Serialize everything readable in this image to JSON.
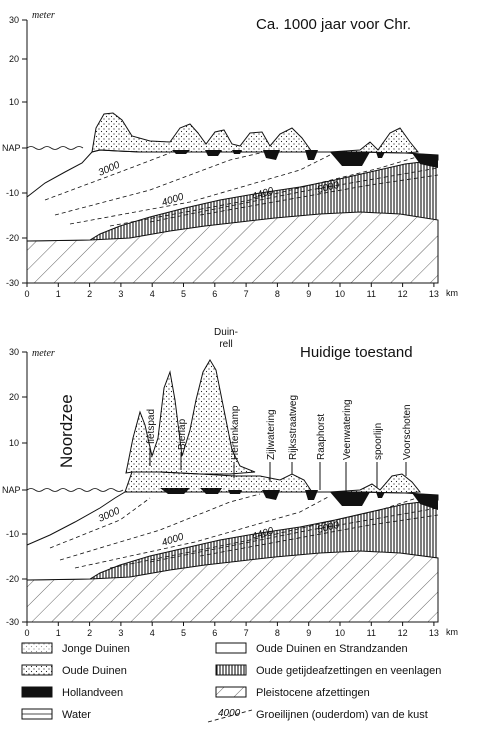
{
  "panel_top": {
    "title": "Ca. 1000 jaar voor Chr.",
    "unit": "meter",
    "nap": "NAP",
    "x_unit": "km",
    "y_ticks": [
      "30",
      "20",
      "10",
      "0",
      "-10",
      "-20",
      "-30"
    ],
    "x_ticks": [
      "0",
      "1",
      "2",
      "3",
      "4",
      "5",
      "6",
      "7",
      "8",
      "9",
      "10",
      "11",
      "12",
      "13"
    ],
    "age_labels": [
      "3000",
      "4000",
      "4400",
      "5000"
    ]
  },
  "panel_bottom": {
    "title": "Huidige toestand",
    "unit": "meter",
    "nap": "NAP",
    "x_unit": "km",
    "sea_label": "Noordzee",
    "y_ticks": [
      "30",
      "20",
      "10",
      "0",
      "-10",
      "-20",
      "-30"
    ],
    "x_ticks": [
      "0",
      "1",
      "2",
      "3",
      "4",
      "5",
      "6",
      "7",
      "8",
      "9",
      "10",
      "11",
      "12",
      "13"
    ],
    "age_labels": [
      "3000",
      "4000",
      "4400",
      "5000"
    ],
    "places": [
      "fietspad",
      "Bierlap",
      "Duin-",
      "rell",
      "Hertenkamp",
      "Zijlwatering",
      "Rijksstraatweg",
      "Raaphorst",
      "Veenwatering",
      "spoorlijn",
      "Voorschoten"
    ]
  },
  "legend": {
    "jonge_duinen": "Jonge Duinen",
    "oude_duinen": "Oude Duinen",
    "hollandveen": "Hollandveen",
    "water": "Water",
    "oude_duinen_strand": "Oude Duinen en Strandzanden",
    "getijde": "Oude getijdeafzettingen en veenlagen",
    "pleistoceen": "Pleistocene afzettingen",
    "groeilijnen": "Groeilijnen (ouderdom) van de kust",
    "groeilijn_sample": "4000"
  }
}
